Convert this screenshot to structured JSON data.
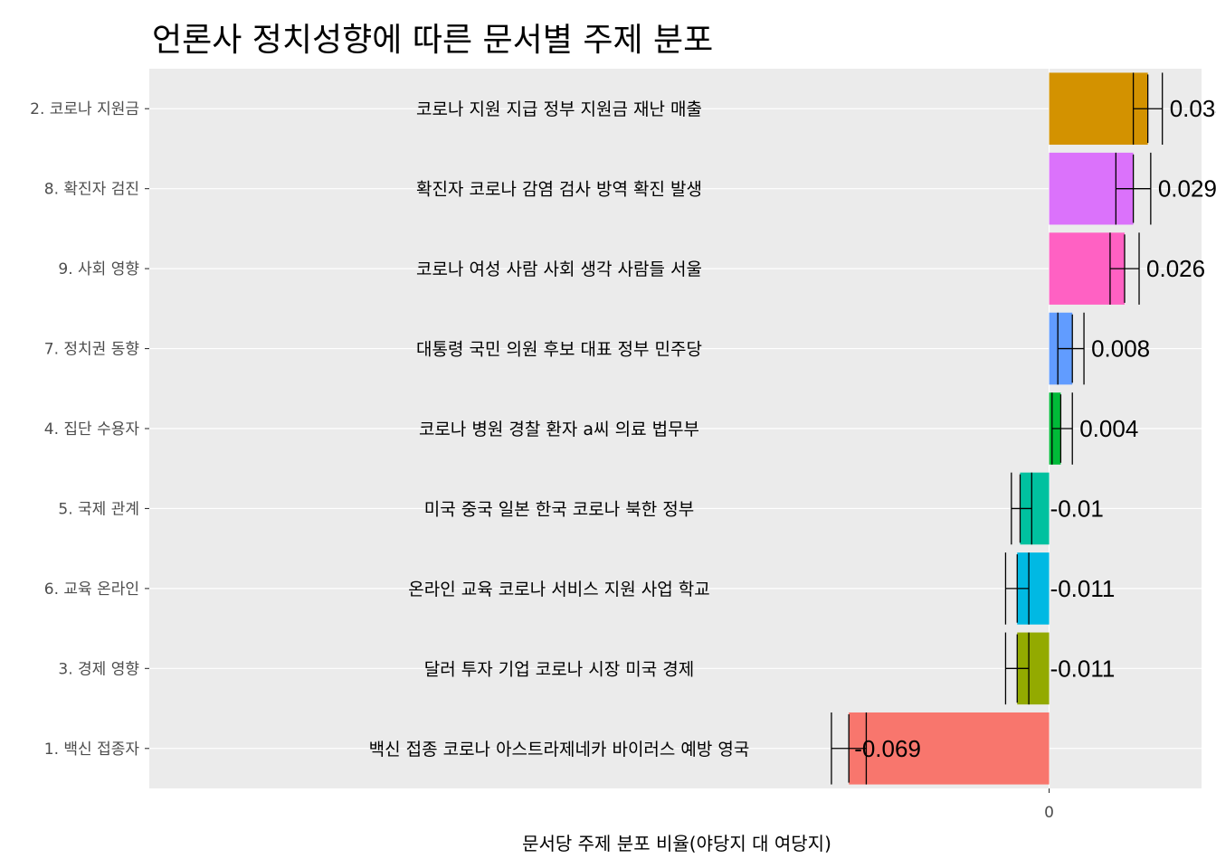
{
  "chart_data": {
    "type": "bar",
    "orientation": "horizontal",
    "title": "언론사 정치성향에 따른 문서별 주제 분포",
    "xlabel": "문서당 주제 분포 비율(야당지 대 여당지)",
    "ylabel": "",
    "xlim": [
      -0.31,
      0.0525
    ],
    "x_ticks": [
      {
        "value": 0,
        "label": "0"
      }
    ],
    "grid": true,
    "legend": "none",
    "categories": [
      "2. 코로나 지원금",
      "8. 확진자 검진",
      "9. 사회 영향",
      "7. 정치권 동향",
      "4. 집단 수용자",
      "5. 국제 관계",
      "6. 교육 온라인",
      "3. 경제 영향",
      "1. 백신 접종자"
    ],
    "values": [
      0.034,
      0.029,
      0.026,
      0.008,
      0.004,
      -0.01,
      -0.011,
      -0.011,
      -0.069
    ],
    "value_labels": [
      "0.034",
      "0.029",
      "0.026",
      "0.008",
      "0.004",
      "-0.01",
      "-0.011",
      "-0.011",
      "-0.069"
    ],
    "error_bars": [
      {
        "low": 0.029,
        "high": 0.039
      },
      {
        "low": 0.023,
        "high": 0.035
      },
      {
        "low": 0.021,
        "high": 0.031
      },
      {
        "low": 0.003,
        "high": 0.012
      },
      {
        "low": 0.001,
        "high": 0.008
      },
      {
        "low": -0.013,
        "high": -0.006
      },
      {
        "low": -0.015,
        "high": -0.007
      },
      {
        "low": -0.015,
        "high": -0.007
      },
      {
        "low": -0.075,
        "high": -0.063
      }
    ],
    "terms": [
      "코로나 지원 지급 정부 지원금 재난 매출",
      "확진자 코로나 감염 검사 방역 확진 발생",
      "코로나 여성 사람 사회 생각 사람들 서울",
      "대통령 국민 의원 후보 대표 정부 민주당",
      "코로나 병원 경찰 환자 a씨 의료 법무부",
      "미국 중국 일본 한국 코로나 북한 정부",
      "온라인 교육 코로나 서비스 지원 사업 학교",
      "달러 투자 기업 코로나 시장 미국 경제",
      "백신 접종 코로나 아스트라제네카 바이러스 예방 영국"
    ],
    "colors": [
      "#D39200",
      "#DB72FB",
      "#FF61C3",
      "#619CFF",
      "#00BA38",
      "#00C19F",
      "#00B9E3",
      "#93AA00",
      "#F8766D"
    ],
    "panel_background": "#EBEBEB",
    "grid_color": "#FFFFFF"
  }
}
